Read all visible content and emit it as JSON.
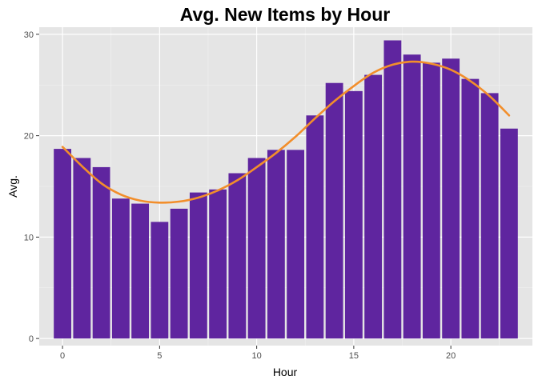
{
  "chart_data": {
    "type": "bar",
    "title": "Avg. New Items by Hour",
    "xlabel": "Hour",
    "ylabel": "Avg.",
    "x": [
      0,
      1,
      2,
      3,
      4,
      5,
      6,
      7,
      8,
      9,
      10,
      11,
      12,
      13,
      14,
      15,
      16,
      17,
      18,
      19,
      20,
      21,
      22,
      23
    ],
    "values": [
      18.7,
      17.8,
      16.9,
      13.8,
      13.3,
      11.5,
      12.8,
      14.4,
      14.7,
      16.3,
      17.8,
      18.6,
      18.6,
      22.0,
      25.2,
      24.4,
      26.0,
      29.4,
      28.0,
      27.2,
      27.6,
      25.6,
      24.2,
      20.7
    ],
    "smooth": {
      "x": [
        0,
        1,
        2,
        3,
        4,
        5,
        6,
        7,
        8,
        9,
        10,
        11,
        12,
        13,
        14,
        15,
        16,
        17,
        18,
        19,
        20,
        21,
        22,
        23
      ],
      "y": [
        18.9,
        17.0,
        15.3,
        14.2,
        13.6,
        13.4,
        13.5,
        13.9,
        14.6,
        15.6,
        16.9,
        18.3,
        19.9,
        21.7,
        23.4,
        24.9,
        26.2,
        27.0,
        27.3,
        27.1,
        26.5,
        25.4,
        23.9,
        22.0
      ]
    },
    "xticks": [
      0,
      5,
      10,
      15,
      20
    ],
    "yticks": [
      0,
      10,
      20,
      30
    ],
    "xlim": [
      -1.2,
      24.2
    ],
    "ylim": [
      -0.7,
      30.7
    ],
    "grid": true,
    "bar_color": "#5f259f",
    "line_color": "#f28e2b",
    "panel_color": "#e5e5e5"
  }
}
